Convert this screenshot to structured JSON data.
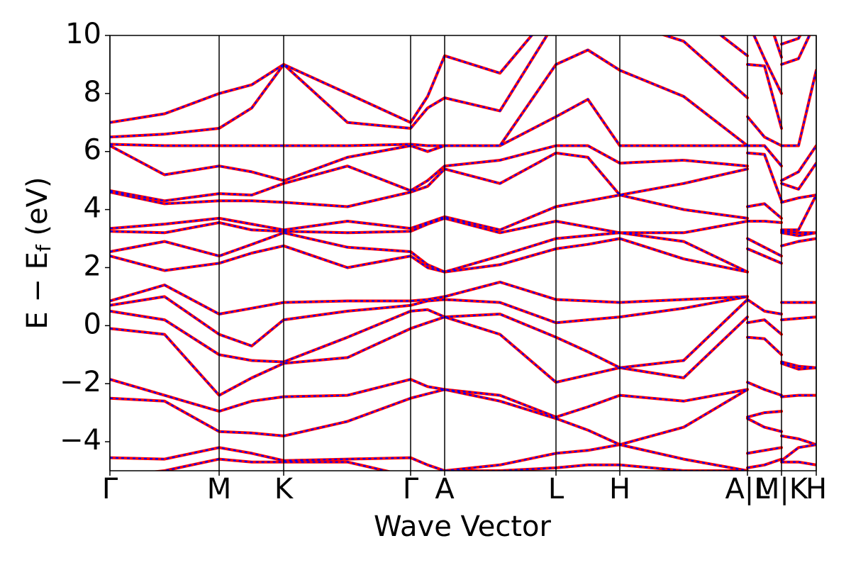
{
  "chart_data": {
    "type": "line",
    "subtype": "band_structure",
    "xlabel": "Wave Vector",
    "ylabel": [
      "E − E",
      "f",
      " (eV)"
    ],
    "xlim": [
      0,
      996
    ],
    "ylim": [
      -5,
      10
    ],
    "xticks": [
      {
        "value": 0,
        "label": "Γ"
      },
      {
        "value": 154,
        "label": "M"
      },
      {
        "value": 245,
        "label": "K"
      },
      {
        "value": 424,
        "label": "Γ"
      },
      {
        "value": 472,
        "label": "A"
      },
      {
        "value": 629,
        "label": "L"
      },
      {
        "value": 719,
        "label": "H"
      },
      {
        "value": 899,
        "label": "A|L"
      },
      {
        "value": 947,
        "label": "M|K"
      },
      {
        "value": 996,
        "label": "H"
      }
    ],
    "yticks": [
      {
        "value": -4,
        "label": "−4"
      },
      {
        "value": -2,
        "label": "−2"
      },
      0,
      2,
      4,
      6,
      8,
      10
    ],
    "x": [
      0,
      77,
      154,
      200,
      245,
      335,
      424,
      448,
      472,
      550,
      629,
      674,
      719,
      809,
      899,
      899,
      899,
      923,
      947,
      947,
      947,
      971,
      996
    ],
    "series": [
      {
        "color": "#ff0000",
        "line_style": "solid",
        "bands": [
          [
            -5.2,
            -5.0,
            -4.6,
            -4.7,
            -4.7,
            -4.7,
            -5.2,
            -5.1,
            -5.0,
            -5.0,
            -4.9,
            -4.8,
            -4.8,
            -5.0,
            -5.0,
            null,
            -4.9,
            -4.8,
            -4.6,
            null,
            -4.7,
            -4.7,
            -4.8
          ],
          [
            -4.55,
            -4.6,
            -4.2,
            -4.4,
            -4.65,
            -4.6,
            -4.55,
            -4.8,
            -5.0,
            -4.8,
            -4.4,
            -4.3,
            -4.1,
            -4.6,
            -5.0,
            null,
            -4.4,
            -4.3,
            -4.2,
            null,
            -4.65,
            -4.2,
            -4.1
          ],
          [
            -2.5,
            -2.6,
            -3.65,
            -3.7,
            -3.8,
            -3.3,
            -2.5,
            -2.35,
            -2.2,
            -2.6,
            -3.2,
            -3.6,
            -4.1,
            -3.5,
            -2.2,
            null,
            -3.2,
            -3.5,
            -3.65,
            null,
            -3.8,
            -3.9,
            -4.1
          ],
          [
            -1.85,
            -2.4,
            -2.95,
            -2.6,
            -2.45,
            -2.4,
            -1.85,
            -2.1,
            -2.2,
            -2.4,
            -3.15,
            -2.8,
            -2.4,
            -2.6,
            -2.2,
            null,
            -3.15,
            -3.0,
            -2.95,
            null,
            -2.45,
            -2.4,
            -2.4
          ],
          [
            -0.1,
            -0.3,
            -2.4,
            -1.8,
            -1.3,
            -1.1,
            -0.1,
            0.1,
            0.3,
            -0.3,
            -1.95,
            -1.7,
            -1.45,
            -1.8,
            0.3,
            null,
            -1.95,
            -2.2,
            -2.4,
            null,
            -1.3,
            -1.5,
            -1.45
          ],
          [
            0.5,
            0.2,
            -1.0,
            -1.2,
            -1.25,
            -0.4,
            0.5,
            0.55,
            0.3,
            0.4,
            -0.4,
            -0.9,
            -1.45,
            -1.2,
            0.9,
            null,
            -0.4,
            -0.45,
            -1.0,
            null,
            -1.25,
            -1.4,
            -1.45
          ],
          [
            0.7,
            1.0,
            -0.3,
            -0.7,
            0.2,
            0.5,
            0.7,
            0.85,
            0.9,
            0.8,
            0.1,
            0.2,
            0.3,
            0.6,
            1.0,
            null,
            0.1,
            0.2,
            -0.3,
            null,
            0.2,
            0.25,
            0.3
          ],
          [
            0.85,
            1.4,
            0.4,
            0.6,
            0.8,
            0.85,
            0.85,
            0.9,
            1.0,
            1.5,
            0.9,
            0.85,
            0.8,
            0.9,
            1.0,
            null,
            0.9,
            0.5,
            0.4,
            null,
            0.8,
            0.8,
            0.8
          ],
          [
            2.4,
            1.9,
            2.15,
            2.5,
            2.75,
            2.0,
            2.4,
            2.0,
            1.85,
            2.1,
            2.65,
            2.8,
            3.0,
            2.3,
            1.85,
            null,
            2.65,
            2.4,
            2.15,
            null,
            2.75,
            2.9,
            3.0
          ],
          [
            2.55,
            2.9,
            2.4,
            2.8,
            3.2,
            2.7,
            2.55,
            2.1,
            1.85,
            2.4,
            3.0,
            3.1,
            3.2,
            2.9,
            1.85,
            null,
            3.0,
            2.7,
            2.4,
            null,
            3.2,
            3.1,
            3.2
          ],
          [
            3.25,
            3.2,
            3.55,
            3.3,
            3.25,
            3.2,
            3.25,
            3.5,
            3.7,
            3.2,
            3.6,
            3.4,
            3.2,
            3.2,
            3.6,
            null,
            3.6,
            3.6,
            3.55,
            null,
            3.25,
            3.2,
            3.2
          ],
          [
            3.35,
            3.5,
            3.7,
            3.5,
            3.3,
            3.6,
            3.35,
            3.55,
            3.75,
            3.3,
            4.1,
            4.3,
            4.5,
            4.0,
            3.7,
            null,
            4.1,
            4.2,
            3.7,
            null,
            3.3,
            3.3,
            4.5
          ],
          [
            4.6,
            4.2,
            4.3,
            4.3,
            4.25,
            4.1,
            4.6,
            4.8,
            5.4,
            4.9,
            5.95,
            5.8,
            4.5,
            4.9,
            5.4,
            null,
            5.95,
            5.9,
            4.3,
            null,
            4.25,
            4.4,
            4.5
          ],
          [
            4.65,
            4.3,
            4.55,
            4.5,
            4.9,
            5.5,
            4.65,
            5.0,
            5.5,
            5.7,
            6.2,
            6.2,
            5.6,
            5.7,
            5.5,
            null,
            6.2,
            6.2,
            5.5,
            null,
            4.9,
            4.7,
            5.6
          ],
          [
            6.2,
            5.2,
            5.5,
            5.3,
            5.0,
            5.8,
            6.2,
            6.0,
            6.2,
            6.2,
            7.2,
            7.8,
            6.2,
            6.2,
            6.2,
            null,
            7.2,
            6.5,
            6.2,
            null,
            5.0,
            5.3,
            6.2
          ],
          [
            6.25,
            6.2,
            6.2,
            6.2,
            6.2,
            6.2,
            6.25,
            6.2,
            6.2,
            6.2,
            9.0,
            9.5,
            8.8,
            7.9,
            6.2,
            null,
            9.0,
            8.95,
            6.8,
            null,
            6.2,
            6.2,
            8.8
          ],
          [
            6.5,
            6.6,
            6.8,
            7.5,
            9.0,
            7.0,
            6.8,
            7.5,
            7.85,
            7.4,
            10.5,
            10.5,
            10.5,
            9.8,
            7.85,
            null,
            10.5,
            9.2,
            8.0,
            null,
            9.0,
            9.2,
            10.5
          ],
          [
            7.0,
            7.3,
            8.0,
            8.3,
            9.0,
            8.0,
            7.0,
            7.9,
            9.3,
            8.7,
            11,
            11,
            11,
            11,
            9.3,
            null,
            11,
            11,
            9.25,
            null,
            9.7,
            9.9,
            11
          ]
        ]
      },
      {
        "color": "#0000ff",
        "line_style": "dashed",
        "bands": [
          [
            -5.2,
            -5.0,
            -4.6,
            -4.7,
            -4.7,
            -4.7,
            -5.2,
            -5.1,
            -5.0,
            -5.0,
            -4.9,
            -4.8,
            -4.8,
            -5.0,
            -5.0,
            null,
            -4.9,
            -4.8,
            -4.6,
            null,
            -4.7,
            -4.7,
            -4.8
          ],
          [
            -4.55,
            -4.6,
            -4.2,
            -4.4,
            -4.65,
            -4.6,
            -4.55,
            -4.8,
            -5.0,
            -4.8,
            -4.4,
            -4.3,
            -4.1,
            -4.6,
            -5.0,
            null,
            -4.4,
            -4.3,
            -4.2,
            null,
            -4.65,
            -4.2,
            -4.1
          ],
          [
            -2.5,
            -2.6,
            -3.65,
            -3.7,
            -3.8,
            -3.3,
            -2.5,
            -2.35,
            -2.2,
            -2.6,
            -3.2,
            -3.6,
            -4.1,
            -3.5,
            -2.2,
            null,
            -3.2,
            -3.5,
            -3.65,
            null,
            -3.8,
            -3.9,
            -4.1
          ],
          [
            -1.85,
            -2.4,
            -2.95,
            -2.6,
            -2.45,
            -2.4,
            -1.85,
            -2.1,
            -2.2,
            -2.4,
            -3.15,
            -2.8,
            -2.4,
            -2.6,
            -2.2,
            null,
            -3.15,
            -3.0,
            -2.95,
            null,
            -2.45,
            -2.4,
            -2.4
          ],
          [
            -0.1,
            -0.3,
            -2.4,
            -1.8,
            -1.3,
            -1.1,
            -0.1,
            0.1,
            0.3,
            -0.3,
            -1.95,
            -1.7,
            -1.45,
            -1.8,
            0.3,
            null,
            -1.95,
            -2.2,
            -2.4,
            null,
            -1.3,
            -1.5,
            -1.45
          ],
          [
            0.5,
            0.2,
            -1.0,
            -1.2,
            -1.25,
            -0.4,
            0.5,
            0.55,
            0.3,
            0.4,
            -0.4,
            -0.9,
            -1.45,
            -1.2,
            0.9,
            null,
            -0.4,
            -0.45,
            -1.0,
            null,
            -1.25,
            -1.4,
            -1.45
          ],
          [
            0.7,
            1.0,
            -0.3,
            -0.7,
            0.2,
            0.5,
            0.7,
            0.85,
            0.9,
            0.8,
            0.1,
            0.2,
            0.3,
            0.6,
            1.0,
            null,
            0.1,
            0.2,
            -0.3,
            null,
            0.2,
            0.25,
            0.3
          ],
          [
            0.85,
            1.4,
            0.4,
            0.6,
            0.8,
            0.85,
            0.85,
            0.9,
            1.0,
            1.5,
            0.9,
            0.85,
            0.8,
            0.9,
            1.0,
            null,
            0.9,
            0.5,
            0.4,
            null,
            0.8,
            0.8,
            0.8
          ],
          [
            2.4,
            1.9,
            2.15,
            2.5,
            2.75,
            2.0,
            2.4,
            2.0,
            1.85,
            2.1,
            2.65,
            2.8,
            3.0,
            2.3,
            1.85,
            null,
            2.65,
            2.4,
            2.15,
            null,
            2.75,
            2.9,
            3.0
          ],
          [
            2.55,
            2.9,
            2.4,
            2.8,
            3.2,
            2.7,
            2.55,
            2.1,
            1.85,
            2.4,
            3.0,
            3.1,
            3.2,
            2.9,
            1.85,
            null,
            3.0,
            2.7,
            2.4,
            null,
            3.2,
            3.1,
            3.2
          ],
          [
            3.25,
            3.2,
            3.55,
            3.3,
            3.25,
            3.2,
            3.25,
            3.5,
            3.7,
            3.2,
            3.6,
            3.4,
            3.2,
            3.2,
            3.6,
            null,
            3.6,
            3.6,
            3.55,
            null,
            3.25,
            3.2,
            3.2
          ],
          [
            3.35,
            3.5,
            3.7,
            3.5,
            3.3,
            3.6,
            3.35,
            3.55,
            3.75,
            3.3,
            4.1,
            4.3,
            4.5,
            4.0,
            3.7,
            null,
            4.1,
            4.2,
            3.7,
            null,
            3.3,
            3.3,
            4.5
          ],
          [
            4.6,
            4.2,
            4.3,
            4.3,
            4.25,
            4.1,
            4.6,
            4.8,
            5.4,
            4.9,
            5.95,
            5.8,
            4.5,
            4.9,
            5.4,
            null,
            5.95,
            5.9,
            4.3,
            null,
            4.25,
            4.4,
            4.5
          ],
          [
            4.65,
            4.3,
            4.55,
            4.5,
            4.9,
            5.5,
            4.65,
            5.0,
            5.5,
            5.7,
            6.2,
            6.2,
            5.6,
            5.7,
            5.5,
            null,
            6.2,
            6.2,
            5.5,
            null,
            4.9,
            4.7,
            5.6
          ],
          [
            6.2,
            5.2,
            5.5,
            5.3,
            5.0,
            5.8,
            6.2,
            6.0,
            6.2,
            6.2,
            7.2,
            7.8,
            6.2,
            6.2,
            6.2,
            null,
            7.2,
            6.5,
            6.2,
            null,
            5.0,
            5.3,
            6.2
          ],
          [
            6.25,
            6.2,
            6.2,
            6.2,
            6.2,
            6.2,
            6.25,
            6.2,
            6.2,
            6.2,
            9.0,
            9.5,
            8.8,
            7.9,
            6.2,
            null,
            9.0,
            8.95,
            6.8,
            null,
            6.2,
            6.2,
            8.8
          ],
          [
            6.5,
            6.6,
            6.8,
            7.5,
            9.0,
            7.0,
            6.8,
            7.5,
            7.85,
            7.4,
            10.5,
            10.5,
            10.5,
            9.8,
            7.85,
            null,
            10.5,
            9.2,
            8.0,
            null,
            9.0,
            9.2,
            10.5
          ],
          [
            7.0,
            7.3,
            8.0,
            8.3,
            9.0,
            8.0,
            7.0,
            7.9,
            9.3,
            8.7,
            11,
            11,
            11,
            11,
            9.3,
            null,
            11,
            11,
            9.25,
            null,
            9.7,
            9.9,
            11
          ]
        ]
      }
    ]
  }
}
